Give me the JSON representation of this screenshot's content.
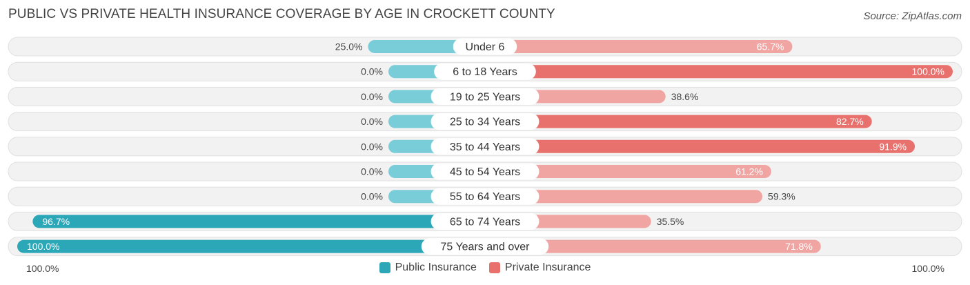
{
  "header": {
    "title": "PUBLIC VS PRIVATE HEALTH INSURANCE COVERAGE BY AGE IN CROCKETT COUNTY",
    "source": "Source: ZipAtlas.com"
  },
  "axis": {
    "left_label": "100.0%",
    "right_label": "100.0%"
  },
  "legend": {
    "public_label": "Public Insurance",
    "private_label": "Private Insurance"
  },
  "colors": {
    "public": "#2ba7b8",
    "public_light": "#79cdd8",
    "private": "#e8716e",
    "private_light": "#f1a5a2",
    "row_bg": "#f2f2f2",
    "row_border": "#e0e0e0"
  },
  "chart_data": {
    "type": "bar",
    "orientation": "horizontal-diverging",
    "title": "PUBLIC VS PRIVATE HEALTH INSURANCE COVERAGE BY AGE IN CROCKETT COUNTY",
    "categories": [
      "Under 6",
      "6 to 18 Years",
      "19 to 25 Years",
      "25 to 34 Years",
      "35 to 44 Years",
      "45 to 54 Years",
      "55 to 64 Years",
      "65 to 74 Years",
      "75 Years and over"
    ],
    "series": [
      {
        "name": "Public Insurance",
        "values": [
          25.0,
          0.0,
          0.0,
          0.0,
          0.0,
          0.0,
          0.0,
          96.7,
          100.0
        ],
        "labels": [
          "25.0%",
          "0.0%",
          "0.0%",
          "0.0%",
          "0.0%",
          "0.0%",
          "0.0%",
          "96.7%",
          "100.0%"
        ]
      },
      {
        "name": "Private Insurance",
        "values": [
          65.7,
          100.0,
          38.6,
          82.7,
          91.9,
          61.2,
          59.3,
          35.5,
          71.8
        ],
        "labels": [
          "65.7%",
          "100.0%",
          "38.6%",
          "82.7%",
          "91.9%",
          "61.2%",
          "59.3%",
          "35.5%",
          "71.8%"
        ]
      }
    ],
    "xlim": [
      -100,
      100
    ],
    "legend_position": "bottom-center"
  }
}
